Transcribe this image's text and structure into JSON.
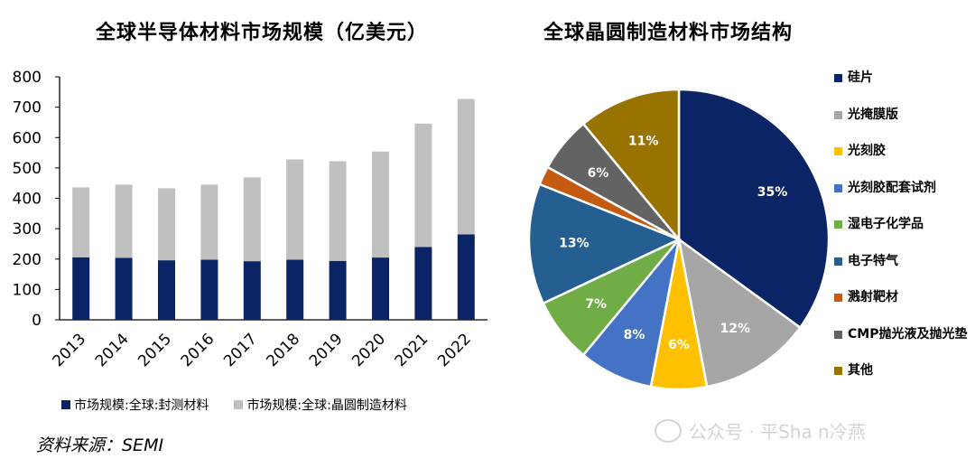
{
  "bar_title": "全球半导体材料市场规模（亿美元）",
  "pie_title": "全球晶圆制造材料市场结构",
  "source": "资料来源：SEMI",
  "watermark": "公众号 · 平Sha n冷燕",
  "chart_data": [
    {
      "type": "bar",
      "stacked": true,
      "title": "全球半导体材料市场规模（亿美元）",
      "categories": [
        "2013",
        "2014",
        "2015",
        "2016",
        "2017",
        "2018",
        "2019",
        "2020",
        "2021",
        "2022"
      ],
      "series": [
        {
          "name": "市场规模:全球:封测材料",
          "color": "#0b2466",
          "values": [
            206,
            204,
            196,
            198,
            193,
            198,
            194,
            205,
            240,
            281
          ]
        },
        {
          "name": "市场规模:全球:晶圆制造材料",
          "color": "#c0c0c0",
          "values": [
            230,
            241,
            237,
            247,
            276,
            330,
            328,
            349,
            406,
            446
          ]
        }
      ],
      "ylim": [
        0,
        800
      ],
      "yticks": [
        0,
        100,
        200,
        300,
        400,
        500,
        600,
        700,
        800
      ],
      "legend": "bottom",
      "grid": false
    },
    {
      "type": "pie",
      "title": "全球晶圆制造材料市场结构",
      "slices": [
        {
          "name": "硅片",
          "value": 35,
          "label": "35%",
          "color": "#0b2466"
        },
        {
          "name": "光掩膜版",
          "value": 12,
          "label": "12%",
          "color": "#a6a6a6"
        },
        {
          "name": "光刻胶",
          "value": 6,
          "label": "6%",
          "color": "#ffc000"
        },
        {
          "name": "光刻胶配套试剂",
          "value": 8,
          "label": "8%",
          "color": "#4472c4"
        },
        {
          "name": "湿电子化学品",
          "value": 7,
          "label": "7%",
          "color": "#70ad47"
        },
        {
          "name": "电子特气",
          "value": 13,
          "label": "13%",
          "color": "#255e91"
        },
        {
          "name": "溅射靶材",
          "value": 2,
          "label": "",
          "color": "#c55a11"
        },
        {
          "name": "CMP抛光液及抛光垫",
          "value": 6,
          "label": "6%",
          "color": "#636363"
        },
        {
          "name": "其他",
          "value": 11,
          "label": "11%",
          "color": "#997300"
        }
      ],
      "legend": "right"
    }
  ]
}
